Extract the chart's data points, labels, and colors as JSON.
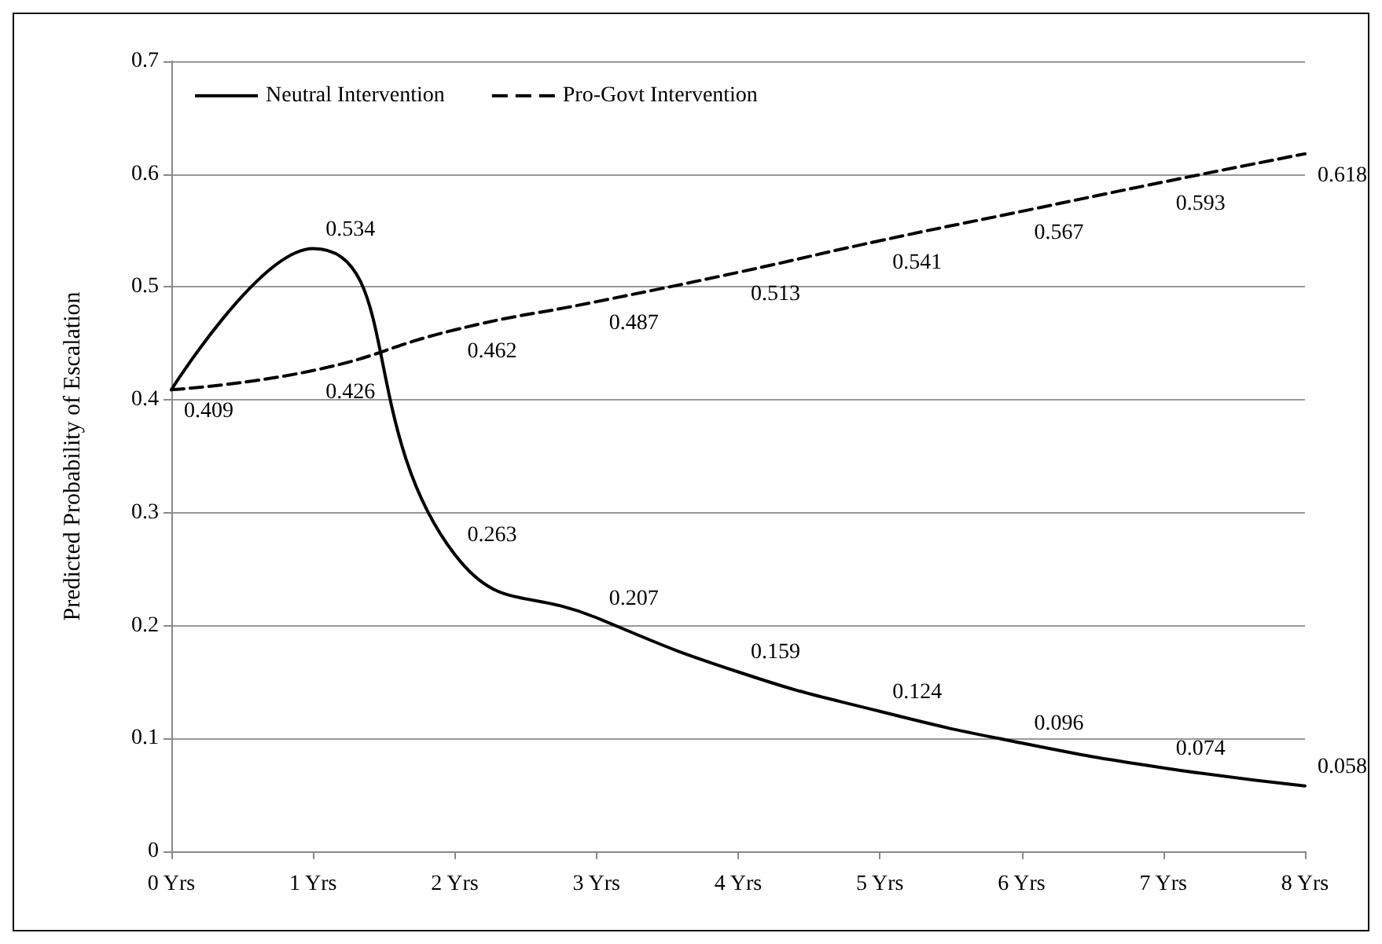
{
  "chart_data": {
    "type": "line",
    "ylabel": "Predicted Probability of Escalation",
    "categories": [
      "0 Yrs",
      "1 Yrs",
      "2 Yrs",
      "3 Yrs",
      "4 Yrs",
      "5 Yrs",
      "6 Yrs",
      "7 Yrs",
      "8 Yrs"
    ],
    "series": [
      {
        "name": "Neutral Intervention",
        "color": "#000000",
        "line_style": "solid",
        "values": [
          0.409,
          0.534,
          0.263,
          0.207,
          0.159,
          0.124,
          0.096,
          0.074,
          0.058
        ],
        "value_labels": [
          null,
          "0.534",
          "0.263",
          "0.207",
          "0.159",
          "0.124",
          "0.096",
          "0.074",
          "0.058"
        ]
      },
      {
        "name": "Pro-Govt Intervention",
        "color": "#000000",
        "line_style": "dashed",
        "values": [
          0.409,
          0.426,
          0.462,
          0.487,
          0.513,
          0.541,
          0.567,
          0.593,
          0.618
        ],
        "value_labels": [
          "0.409",
          "0.426",
          "0.462",
          "0.487",
          "0.513",
          "0.541",
          "0.567",
          "0.593",
          "0.618"
        ]
      }
    ],
    "ylim": [
      0,
      0.7
    ],
    "yticks": [
      0,
      0.1,
      0.2,
      0.3,
      0.4,
      0.5,
      0.6,
      0.7
    ],
    "grid": "y",
    "legend": "top left",
    "marker": "none"
  }
}
